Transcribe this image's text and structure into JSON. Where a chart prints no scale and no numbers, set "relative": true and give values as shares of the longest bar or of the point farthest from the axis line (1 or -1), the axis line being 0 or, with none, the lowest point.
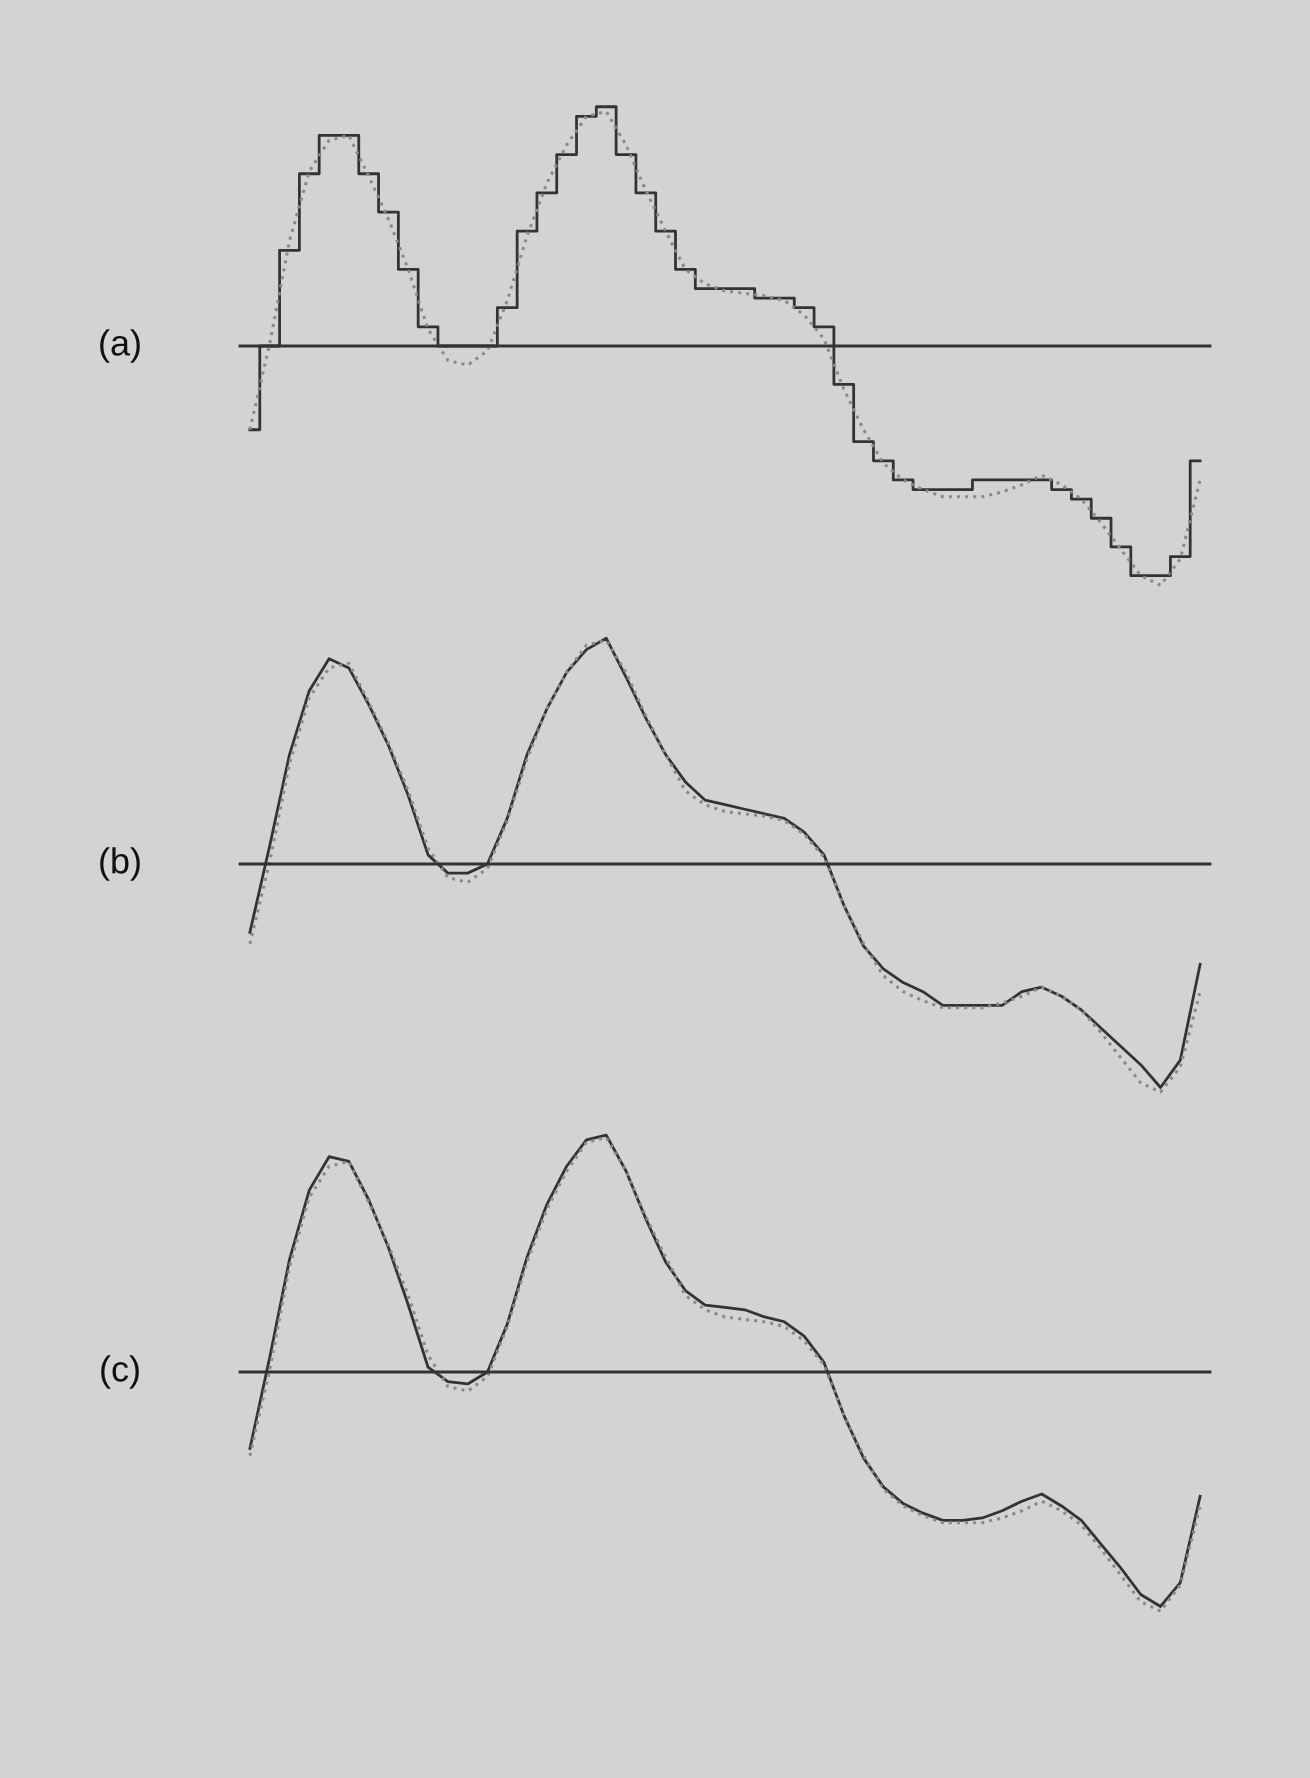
{
  "chart_data": [
    {
      "type": "line",
      "title": "(a)",
      "relative": true,
      "categories": [
        null,
        null,
        null,
        null,
        null,
        null,
        null,
        null,
        null,
        null,
        null,
        null,
        null,
        null,
        null,
        null,
        null,
        null,
        null,
        null,
        null,
        null,
        null,
        null,
        null,
        null,
        null,
        null,
        null,
        null,
        null,
        null,
        null,
        null,
        null,
        null,
        null,
        null,
        null,
        null,
        null,
        null,
        null,
        null,
        null,
        null,
        null,
        null,
        null
      ],
      "series": [
        {
          "type": "step",
          "color": "#333333",
          "line_style": "solid",
          "values": [
            -0.35,
            0,
            0.4,
            0.72,
            0.88,
            0.88,
            0.72,
            0.56,
            0.32,
            0.08,
            0,
            0,
            0,
            0.16,
            0.48,
            0.64,
            0.8,
            0.96,
            1.0,
            0.8,
            0.64,
            0.48,
            0.32,
            0.24,
            0.24,
            0.24,
            0.2,
            0.2,
            0.16,
            0.08,
            -0.16,
            -0.4,
            -0.48,
            -0.56,
            -0.6,
            -0.6,
            -0.6,
            -0.56,
            -0.56,
            -0.56,
            -0.56,
            -0.6,
            -0.64,
            -0.72,
            -0.84,
            -0.96,
            -0.96,
            -0.88,
            -0.48
          ]
        },
        {
          "color": "#8a8a8a",
          "line_style": "dotted",
          "values": [
            -0.35,
            0.01,
            0.44,
            0.73,
            0.86,
            0.88,
            0.71,
            0.53,
            0.32,
            0.07,
            -0.06,
            -0.08,
            -0.02,
            0.19,
            0.46,
            0.68,
            0.84,
            0.96,
            0.98,
            0.84,
            0.65,
            0.48,
            0.32,
            0.26,
            0.23,
            0.22,
            0.21,
            0.19,
            0.13,
            0.03,
            -0.18,
            -0.35,
            -0.49,
            -0.56,
            -0.6,
            -0.63,
            -0.63,
            -0.63,
            -0.61,
            -0.58,
            -0.54,
            -0.58,
            -0.64,
            -0.74,
            -0.85,
            -0.96,
            -1,
            -0.89,
            -0.56
          ]
        }
      ]
    },
    {
      "type": "line",
      "title": "(b)",
      "relative": true,
      "categories": [
        null,
        null,
        null,
        null,
        null,
        null,
        null,
        null,
        null,
        null,
        null,
        null,
        null,
        null,
        null,
        null,
        null,
        null,
        null,
        null,
        null,
        null,
        null,
        null,
        null,
        null,
        null,
        null,
        null,
        null,
        null,
        null,
        null,
        null,
        null,
        null,
        null,
        null,
        null,
        null,
        null,
        null,
        null,
        null,
        null,
        null,
        null,
        null,
        null
      ],
      "series": [
        {
          "color": "#333333",
          "line_style": "solid",
          "values": [
            -0.3,
            0.08,
            0.48,
            0.76,
            0.9,
            0.86,
            0.7,
            0.52,
            0.3,
            0.04,
            -0.04,
            -0.04,
            0,
            0.2,
            0.48,
            0.68,
            0.84,
            0.94,
            0.99,
            0.82,
            0.64,
            0.48,
            0.36,
            0.28,
            0.26,
            0.24,
            0.22,
            0.2,
            0.14,
            0.04,
            -0.18,
            -0.36,
            -0.46,
            -0.52,
            -0.56,
            -0.62,
            -0.62,
            -0.62,
            -0.62,
            -0.56,
            -0.54,
            -0.58,
            -0.64,
            -0.72,
            -0.8,
            -0.88,
            -0.98,
            -0.86,
            -0.44
          ]
        },
        {
          "type": "line",
          "color": "#8a8a8a",
          "line_style": "dotted",
          "values": [
            -0.35,
            0.01,
            0.44,
            0.73,
            0.86,
            0.88,
            0.71,
            0.53,
            0.32,
            0.07,
            -0.06,
            -0.08,
            -0.02,
            0.19,
            0.46,
            0.68,
            0.84,
            0.96,
            0.98,
            0.84,
            0.65,
            0.48,
            0.32,
            0.26,
            0.23,
            0.22,
            0.21,
            0.19,
            0.13,
            0.03,
            -0.18,
            -0.35,
            -0.49,
            -0.56,
            -0.6,
            -0.63,
            -0.63,
            -0.63,
            -0.61,
            -0.58,
            -0.54,
            -0.58,
            -0.64,
            -0.74,
            -0.85,
            -0.96,
            -1,
            -0.89,
            -0.56
          ]
        }
      ]
    },
    {
      "type": "line",
      "title": "(c)",
      "relative": true,
      "categories": [
        null,
        null,
        null,
        null,
        null,
        null,
        null,
        null,
        null,
        null,
        null,
        null,
        null,
        null,
        null,
        null,
        null,
        null,
        null,
        null,
        null,
        null,
        null,
        null,
        null,
        null,
        null,
        null,
        null,
        null,
        null,
        null,
        null,
        null,
        null,
        null,
        null,
        null,
        null,
        null,
        null,
        null,
        null,
        null,
        null,
        null,
        null,
        null,
        null
      ],
      "series": [
        {
          "color": "#333333",
          "line_style": "solid",
          "values": [
            -0.32,
            0.06,
            0.47,
            0.76,
            0.9,
            0.88,
            0.72,
            0.52,
            0.28,
            0.02,
            -0.04,
            -0.05,
            0,
            0.2,
            0.48,
            0.7,
            0.86,
            0.97,
            0.99,
            0.84,
            0.64,
            0.46,
            0.34,
            0.28,
            0.27,
            0.26,
            0.23,
            0.21,
            0.15,
            0.04,
            -0.18,
            -0.36,
            -0.48,
            -0.55,
            -0.59,
            -0.62,
            -0.62,
            -0.61,
            -0.58,
            -0.54,
            -0.51,
            -0.56,
            -0.62,
            -0.72,
            -0.82,
            -0.93,
            -0.98,
            -0.88,
            -0.52
          ]
        },
        {
          "type": "line",
          "color": "#8a8a8a",
          "line_style": "dotted",
          "values": [
            -0.35,
            0.01,
            0.44,
            0.73,
            0.86,
            0.88,
            0.71,
            0.53,
            0.32,
            0.07,
            -0.06,
            -0.08,
            -0.02,
            0.19,
            0.46,
            0.68,
            0.84,
            0.96,
            0.98,
            0.84,
            0.65,
            0.48,
            0.32,
            0.26,
            0.23,
            0.22,
            0.21,
            0.19,
            0.13,
            0.03,
            -0.18,
            -0.35,
            -0.49,
            -0.56,
            -0.6,
            -0.63,
            -0.63,
            -0.63,
            -0.61,
            -0.58,
            -0.54,
            -0.58,
            -0.64,
            -0.74,
            -0.85,
            -0.96,
            -1,
            -0.89,
            -0.56
          ]
        }
      ]
    }
  ]
}
